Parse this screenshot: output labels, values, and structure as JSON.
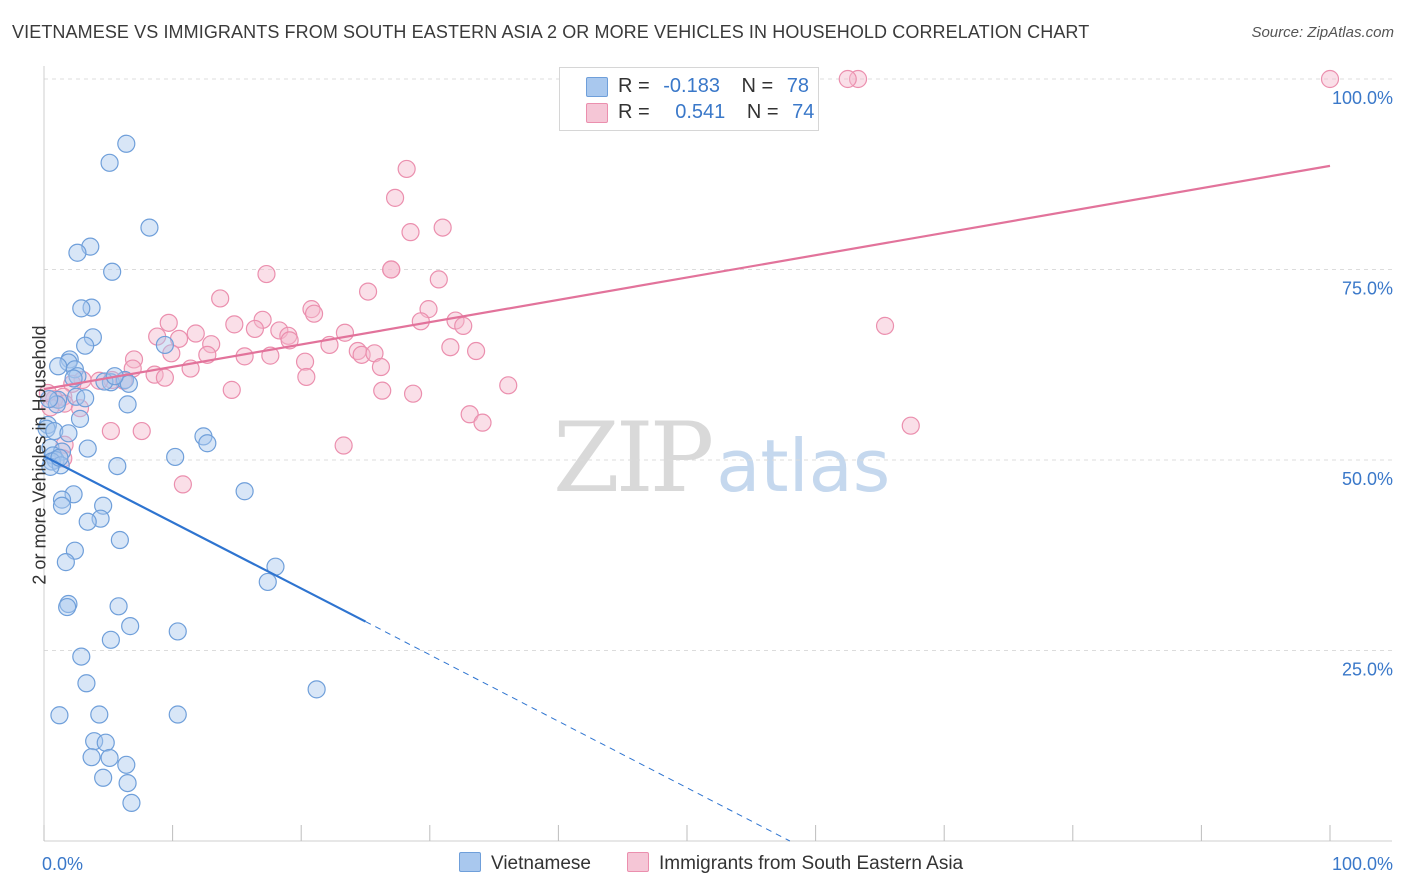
{
  "title": "VIETNAMESE VS IMMIGRANTS FROM SOUTH EASTERN ASIA 2 OR MORE VEHICLES IN HOUSEHOLD CORRELATION CHART",
  "source": "Source: ZipAtlas.com",
  "watermark": {
    "zip": "ZIP",
    "atlas": "atlas"
  },
  "legend": {
    "rows": [
      {
        "r_label": "R =",
        "r_value": "-0.183",
        "n_label": "N =",
        "n_value": "78"
      },
      {
        "r_label": "R =",
        "r_value": "0.541",
        "n_label": "N =",
        "n_value": "74"
      }
    ]
  },
  "colors": {
    "blue_fill": "#a9c8ee",
    "blue_stroke": "#6f9fda",
    "blue_line": "#2e74d0",
    "pink_fill": "#f5b9cc",
    "pink_stroke": "#eb8fae",
    "pink_line": "#e2739b",
    "tick_label": "#3a78c9"
  },
  "chart_data": {
    "type": "scatter",
    "title": "VIETNAMESE VS IMMIGRANTS FROM SOUTH EASTERN ASIA 2 OR MORE VEHICLES IN HOUSEHOLD CORRELATION CHART",
    "xlabel": "",
    "ylabel": "2 or more Vehicles in Household",
    "xlim": [
      0,
      100
    ],
    "ylim": [
      0,
      100
    ],
    "x_tick_labels": [
      "0.0%",
      "100.0%"
    ],
    "y_ticks": [
      {
        "value": 100,
        "label": "100.0%"
      },
      {
        "value": 75,
        "label": "75.0%"
      },
      {
        "value": 50,
        "label": "50.0%"
      },
      {
        "value": 25,
        "label": "25.0%"
      }
    ],
    "series": [
      {
        "name": "Vietnamese",
        "color": "#6f9fda",
        "r": -0.183,
        "n": 78,
        "trend": {
          "x0": 0,
          "y0": 50.5,
          "x1": 25,
          "y1": 28.8,
          "dash_to_x": 58,
          "dash_to_y": 0
        },
        "points": [
          [
            6.4,
            91.5
          ],
          [
            5.1,
            89.0
          ],
          [
            8.2,
            80.5
          ],
          [
            3.6,
            78.0
          ],
          [
            2.6,
            77.2
          ],
          [
            5.3,
            74.7
          ],
          [
            3.7,
            70.0
          ],
          [
            2.9,
            69.9
          ],
          [
            3.8,
            66.1
          ],
          [
            9.4,
            65.1
          ],
          [
            3.2,
            65.0
          ],
          [
            2.0,
            63.2
          ],
          [
            1.9,
            62.8
          ],
          [
            1.1,
            62.3
          ],
          [
            2.4,
            61.9
          ],
          [
            2.6,
            61.0
          ],
          [
            2.3,
            60.7
          ],
          [
            5.2,
            60.2
          ],
          [
            6.3,
            60.5
          ],
          [
            4.7,
            60.3
          ],
          [
            6.6,
            60.0
          ],
          [
            2.5,
            58.3
          ],
          [
            3.2,
            58.1
          ],
          [
            1.1,
            57.9
          ],
          [
            1.0,
            57.3
          ],
          [
            6.5,
            57.3
          ],
          [
            0.3,
            54.6
          ],
          [
            0.2,
            54.1
          ],
          [
            0.8,
            53.8
          ],
          [
            2.8,
            55.4
          ],
          [
            1.9,
            53.5
          ],
          [
            12.4,
            53.1
          ],
          [
            12.7,
            52.2
          ],
          [
            0.5,
            51.6
          ],
          [
            3.4,
            51.5
          ],
          [
            1.4,
            51.1
          ],
          [
            0.7,
            50.6
          ],
          [
            10.2,
            50.4
          ],
          [
            0.9,
            50.0
          ],
          [
            0.6,
            49.8
          ],
          [
            1.3,
            49.3
          ],
          [
            0.5,
            49.1
          ],
          [
            5.7,
            49.2
          ],
          [
            15.6,
            45.9
          ],
          [
            2.3,
            45.5
          ],
          [
            1.4,
            44.8
          ],
          [
            1.4,
            44.0
          ],
          [
            4.6,
            44.0
          ],
          [
            4.4,
            42.3
          ],
          [
            3.4,
            41.9
          ],
          [
            5.9,
            39.5
          ],
          [
            2.4,
            38.1
          ],
          [
            1.7,
            36.6
          ],
          [
            18.0,
            36.0
          ],
          [
            17.4,
            34.0
          ],
          [
            1.9,
            31.1
          ],
          [
            1.8,
            30.7
          ],
          [
            5.8,
            30.8
          ],
          [
            6.7,
            28.2
          ],
          [
            10.4,
            27.5
          ],
          [
            5.2,
            26.4
          ],
          [
            2.9,
            24.2
          ],
          [
            3.3,
            20.7
          ],
          [
            21.2,
            19.9
          ],
          [
            1.2,
            16.5
          ],
          [
            4.3,
            16.6
          ],
          [
            10.4,
            16.6
          ],
          [
            3.9,
            13.1
          ],
          [
            4.8,
            12.9
          ],
          [
            3.7,
            11.0
          ],
          [
            5.1,
            10.9
          ],
          [
            6.4,
            10.0
          ],
          [
            4.6,
            8.3
          ],
          [
            6.5,
            7.6
          ],
          [
            6.8,
            5.0
          ],
          [
            1.2,
            50.3
          ],
          [
            0.4,
            58.0
          ],
          [
            5.5,
            61.0
          ]
        ]
      },
      {
        "name": "Immigrants from South Eastern Asia",
        "color": "#eb8fae",
        "r": 0.541,
        "n": 74,
        "trend": {
          "x0": 0,
          "y0": 59.3,
          "x1": 100,
          "y1": 88.6
        },
        "points": [
          [
            63.3,
            100.0
          ],
          [
            100.0,
            100.0
          ],
          [
            28.2,
            88.2
          ],
          [
            27.3,
            84.4
          ],
          [
            28.5,
            79.9
          ],
          [
            31.0,
            80.5
          ],
          [
            17.3,
            74.4
          ],
          [
            27.0,
            75.0
          ],
          [
            30.7,
            73.7
          ],
          [
            25.2,
            72.1
          ],
          [
            13.7,
            71.2
          ],
          [
            20.8,
            69.8
          ],
          [
            21.0,
            69.2
          ],
          [
            17.0,
            68.4
          ],
          [
            29.9,
            69.8
          ],
          [
            29.3,
            68.2
          ],
          [
            32.0,
            68.3
          ],
          [
            32.6,
            67.6
          ],
          [
            65.4,
            67.6
          ],
          [
            9.7,
            68.0
          ],
          [
            14.8,
            67.8
          ],
          [
            16.4,
            67.2
          ],
          [
            18.3,
            67.0
          ],
          [
            19.0,
            66.3
          ],
          [
            23.4,
            66.7
          ],
          [
            8.8,
            66.2
          ],
          [
            11.8,
            66.6
          ],
          [
            10.5,
            65.9
          ],
          [
            19.1,
            65.7
          ],
          [
            13.0,
            65.2
          ],
          [
            22.2,
            65.1
          ],
          [
            31.6,
            64.8
          ],
          [
            33.6,
            64.3
          ],
          [
            24.4,
            64.3
          ],
          [
            24.7,
            63.8
          ],
          [
            9.9,
            64.0
          ],
          [
            25.7,
            64.0
          ],
          [
            12.7,
            63.8
          ],
          [
            15.6,
            63.6
          ],
          [
            17.6,
            63.7
          ],
          [
            7.0,
            63.2
          ],
          [
            20.3,
            62.9
          ],
          [
            26.2,
            62.2
          ],
          [
            8.6,
            61.2
          ],
          [
            11.4,
            62.0
          ],
          [
            6.9,
            62.0
          ],
          [
            20.4,
            60.9
          ],
          [
            9.4,
            60.8
          ],
          [
            5.3,
            60.5
          ],
          [
            3.0,
            60.5
          ],
          [
            6.2,
            60.4
          ],
          [
            4.3,
            60.4
          ],
          [
            2.2,
            60.0
          ],
          [
            36.1,
            59.8
          ],
          [
            14.6,
            59.2
          ],
          [
            26.3,
            59.1
          ],
          [
            28.7,
            58.7
          ],
          [
            1.5,
            58.3
          ],
          [
            0.8,
            58.0
          ],
          [
            1.6,
            57.4
          ],
          [
            0.5,
            56.9
          ],
          [
            33.1,
            56.0
          ],
          [
            34.1,
            54.9
          ],
          [
            67.4,
            54.5
          ],
          [
            5.2,
            53.8
          ],
          [
            7.6,
            53.8
          ],
          [
            1.6,
            52.0
          ],
          [
            23.3,
            51.9
          ],
          [
            1.5,
            50.2
          ],
          [
            10.8,
            46.8
          ],
          [
            27.0,
            75.0
          ],
          [
            62.5,
            100.0
          ],
          [
            0.3,
            58.8
          ],
          [
            2.8,
            56.8
          ]
        ]
      }
    ]
  },
  "bottom_legend": [
    {
      "label": "Vietnamese"
    },
    {
      "label": "Immigrants from South Eastern Asia"
    }
  ]
}
